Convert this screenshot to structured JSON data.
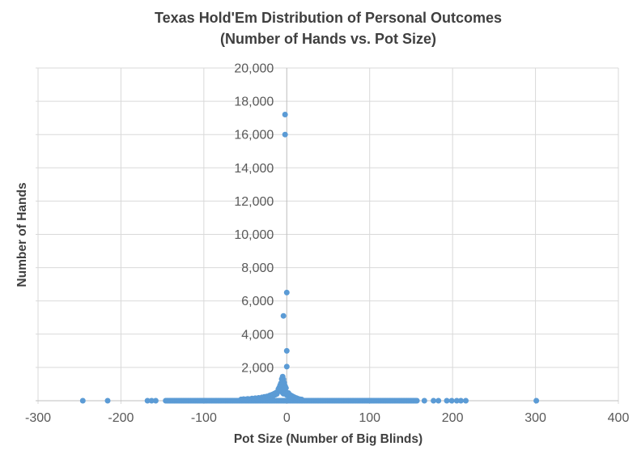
{
  "title": {
    "line1": "Texas Hold'Em Distribution of Personal Outcomes",
    "line2": "(Number of Hands vs. Pot Size)"
  },
  "colors": {
    "marker": "#5B9BD5",
    "gridline": "#D9D9D9",
    "axis_line": "#BFBFBF",
    "title_text": "#3F3F3F",
    "tick_text": "#595959"
  },
  "chart_data": {
    "type": "scatter",
    "title": "Texas Hold'Em Distribution of Personal Outcomes (Number of Hands vs. Pot Size)",
    "xlabel": "Pot Size (Number of Big Blinds)",
    "ylabel": "Number of Hands",
    "xlim": [
      -300,
      400
    ],
    "ylim": [
      0,
      20000
    ],
    "grid": true,
    "legend": false,
    "x_ticks": [
      {
        "v": -300,
        "label": "-300"
      },
      {
        "v": -200,
        "label": "-200"
      },
      {
        "v": -100,
        "label": "-100"
      },
      {
        "v": 0,
        "label": "0"
      },
      {
        "v": 100,
        "label": "100"
      },
      {
        "v": 200,
        "label": "200"
      },
      {
        "v": 300,
        "label": "300"
      },
      {
        "v": 400,
        "label": "400"
      }
    ],
    "y_ticks": [
      {
        "v": 2000,
        "label": "2,000"
      },
      {
        "v": 4000,
        "label": "4,000"
      },
      {
        "v": 6000,
        "label": "6,000"
      },
      {
        "v": 8000,
        "label": "8,000"
      },
      {
        "v": 10000,
        "label": "10,000"
      },
      {
        "v": 12000,
        "label": "12,000"
      },
      {
        "v": 14000,
        "label": "14,000"
      },
      {
        "v": 16000,
        "label": "16,000"
      },
      {
        "v": 18000,
        "label": "18,000"
      },
      {
        "v": 20000,
        "label": "20,000"
      }
    ],
    "points": {
      "high": [
        [
          -2,
          17200
        ],
        [
          -2,
          16000
        ],
        [
          0,
          6500
        ],
        [
          -4,
          5100
        ],
        [
          0,
          3000
        ],
        [
          0,
          2050
        ]
      ],
      "cluster": [
        [
          -5,
          1450
        ],
        [
          -6,
          1300
        ],
        [
          -4,
          1280
        ],
        [
          -5,
          1150
        ],
        [
          -7,
          1050
        ],
        [
          -3,
          1080
        ],
        [
          -8,
          930
        ],
        [
          -5,
          980
        ],
        [
          -2,
          880
        ],
        [
          -9,
          800
        ],
        [
          -6,
          820
        ],
        [
          -1,
          760
        ],
        [
          -10,
          700
        ],
        [
          -4,
          720
        ]
      ],
      "mound": [
        [
          -55,
          80
        ],
        [
          -52,
          95
        ],
        [
          -49,
          85
        ],
        [
          -47,
          110
        ],
        [
          -44,
          95
        ],
        [
          -42,
          130
        ],
        [
          -40,
          110
        ],
        [
          -38,
          150
        ],
        [
          -36,
          125
        ],
        [
          -34,
          170
        ],
        [
          -32,
          140
        ],
        [
          -30,
          200
        ],
        [
          -29,
          160
        ],
        [
          -27,
          230
        ],
        [
          -26,
          185
        ],
        [
          -24,
          260
        ],
        [
          -23,
          210
        ],
        [
          -21,
          300
        ],
        [
          -20,
          240
        ],
        [
          -19,
          340
        ],
        [
          -18,
          280
        ],
        [
          -17,
          380
        ],
        [
          -16,
          320
        ],
        [
          -15,
          430
        ],
        [
          -14,
          360
        ],
        [
          -13,
          480
        ],
        [
          -12,
          410
        ],
        [
          -11,
          540
        ],
        [
          -10,
          600
        ],
        [
          -9,
          650
        ],
        [
          -8,
          580
        ],
        [
          -7,
          630
        ],
        [
          -6,
          560
        ],
        [
          -5,
          480
        ],
        [
          -4,
          420
        ],
        [
          -3,
          560
        ],
        [
          -2,
          480
        ],
        [
          -1,
          400
        ],
        [
          0,
          470
        ],
        [
          0,
          340
        ],
        [
          1,
          390
        ],
        [
          2,
          330
        ],
        [
          2,
          460
        ],
        [
          3,
          280
        ],
        [
          4,
          350
        ],
        [
          5,
          230
        ],
        [
          6,
          290
        ],
        [
          7,
          190
        ],
        [
          8,
          240
        ],
        [
          9,
          150
        ],
        [
          10,
          190
        ],
        [
          11,
          120
        ],
        [
          12,
          150
        ],
        [
          14,
          110
        ],
        [
          16,
          90
        ],
        [
          18,
          75
        ]
      ],
      "outliers_y0": [
        -246,
        -216,
        -168,
        -163,
        -158,
        166,
        177,
        183,
        193,
        199,
        205,
        210,
        216,
        301
      ],
      "dense_band": {
        "x_start": -146,
        "x_end": 158,
        "y": 0,
        "point_spacing": 1.5
      }
    }
  }
}
